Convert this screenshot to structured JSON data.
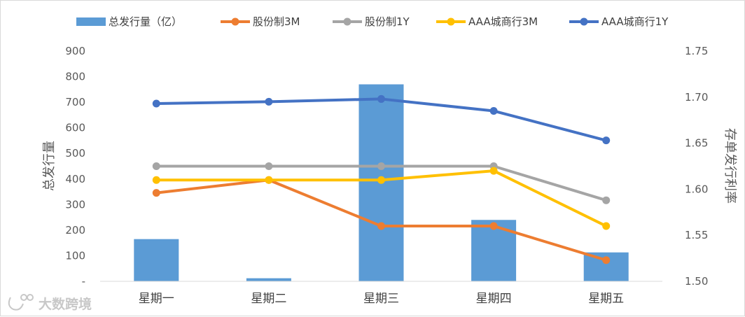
{
  "chart_data": {
    "type": "bar+line",
    "categories": [
      "星期一",
      "星期二",
      "星期三",
      "星期四",
      "星期五"
    ],
    "bar_series": {
      "name": "总发行量（亿）",
      "axis": "left",
      "color": "#5b9bd5",
      "values": [
        165,
        12,
        770,
        240,
        113
      ]
    },
    "line_series": [
      {
        "name": "股份制3M",
        "axis": "right",
        "color": "#ed7d31",
        "values": [
          1.596,
          1.61,
          1.56,
          1.56,
          1.523
        ]
      },
      {
        "name": "股份制1Y",
        "axis": "right",
        "color": "#a5a5a5",
        "values": [
          1.625,
          1.625,
          1.625,
          1.625,
          1.588
        ]
      },
      {
        "name": "AAA城商行3M",
        "axis": "right",
        "color": "#ffc000",
        "values": [
          1.61,
          1.61,
          1.61,
          1.62,
          1.56
        ]
      },
      {
        "name": "AAA城商行1Y",
        "axis": "right",
        "color": "#4472c4",
        "values": [
          1.693,
          1.695,
          1.698,
          1.685,
          1.653
        ]
      }
    ],
    "left_axis": {
      "label": "总发行量",
      "ylim": [
        0,
        900
      ],
      "ticks": [
        "-",
        "100",
        "200",
        "300",
        "400",
        "500",
        "600",
        "700",
        "800",
        "900"
      ]
    },
    "right_axis": {
      "label": "存单发行利率",
      "ylim": [
        1.5,
        1.75
      ],
      "ticks": [
        "1.50",
        "1.55",
        "1.60",
        "1.65",
        "1.70",
        "1.75"
      ]
    },
    "legend_position": "top",
    "grid": false
  },
  "watermark": {
    "text": "大数跨境"
  }
}
